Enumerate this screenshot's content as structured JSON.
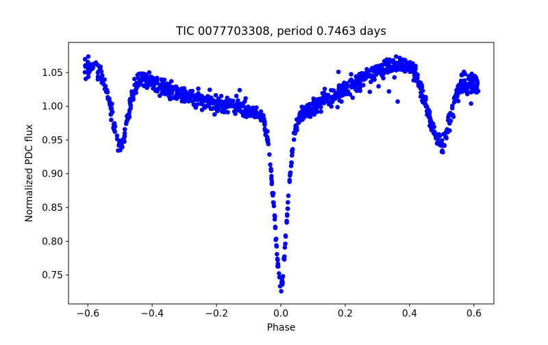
{
  "figure": {
    "background": "#ffffff",
    "axis_color": "#000000",
    "text_color": "#000000"
  },
  "chart_data": {
    "type": "scatter",
    "title": "TIC 0077703308, period 0.7463 days",
    "xlabel": "Phase",
    "ylabel": "Normalized PDC flux",
    "xlim": [
      -0.66,
      0.662
    ],
    "ylim": [
      0.7072,
      1.0946
    ],
    "grid": false,
    "legend": "none",
    "xticks": [
      -0.6,
      -0.4,
      -0.2,
      0.0,
      0.2,
      0.4,
      0.6
    ],
    "xtick_labels": [
      "−0.6",
      "−0.4",
      "−0.2",
      "0.0",
      "0.2",
      "0.4",
      "0.6"
    ],
    "yticks": [
      0.75,
      0.8,
      0.85,
      0.9,
      0.95,
      1.0,
      1.05
    ],
    "ytick_labels": [
      "0.75",
      "0.80",
      "0.85",
      "0.90",
      "0.95",
      "1.00",
      "1.05"
    ],
    "marker": {
      "color": "#0000ff",
      "radius_px": 3.3,
      "shape": "circle"
    },
    "phase_range": [
      -0.611,
      0.614
    ],
    "n_points": 1150,
    "seed": 9,
    "primary_eclipse": {
      "phase": 0.0,
      "min_flux": 0.731
    },
    "secondary_eclipse_left": {
      "phase": -0.5,
      "min_flux": 0.94
    },
    "secondary_eclipse_right": {
      "phase": 0.5,
      "min_flux": 0.944
    },
    "out_of_eclipse_max_flux": 1.063,
    "mean_curve": [
      [
        -0.615,
        1.057
      ],
      [
        -0.605,
        1.059
      ],
      [
        -0.595,
        1.06
      ],
      [
        -0.585,
        1.058
      ],
      [
        -0.575,
        1.054
      ],
      [
        -0.565,
        1.049
      ],
      [
        -0.555,
        1.04
      ],
      [
        -0.545,
        1.027
      ],
      [
        -0.535,
        1.008
      ],
      [
        -0.525,
        0.985
      ],
      [
        -0.515,
        0.962
      ],
      [
        -0.508,
        0.948
      ],
      [
        -0.5,
        0.94
      ],
      [
        -0.492,
        0.948
      ],
      [
        -0.485,
        0.962
      ],
      [
        -0.475,
        0.986
      ],
      [
        -0.465,
        1.01
      ],
      [
        -0.455,
        1.028
      ],
      [
        -0.445,
        1.038
      ],
      [
        -0.435,
        1.043
      ],
      [
        -0.425,
        1.042
      ],
      [
        -0.41,
        1.039
      ],
      [
        -0.39,
        1.034
      ],
      [
        -0.37,
        1.03
      ],
      [
        -0.35,
        1.026
      ],
      [
        -0.33,
        1.022
      ],
      [
        -0.31,
        1.018
      ],
      [
        -0.29,
        1.015
      ],
      [
        -0.27,
        1.012
      ],
      [
        -0.25,
        1.009
      ],
      [
        -0.23,
        1.007
      ],
      [
        -0.21,
        1.005
      ],
      [
        -0.19,
        1.002
      ],
      [
        -0.17,
        1.0
      ],
      [
        -0.15,
        0.998
      ],
      [
        -0.13,
        0.996
      ],
      [
        -0.11,
        0.994
      ],
      [
        -0.09,
        0.991
      ],
      [
        -0.075,
        0.989
      ],
      [
        -0.062,
        0.986
      ],
      [
        -0.054,
        0.98
      ],
      [
        -0.047,
        0.968
      ],
      [
        -0.04,
        0.948
      ],
      [
        -0.033,
        0.917
      ],
      [
        -0.026,
        0.877
      ],
      [
        -0.019,
        0.832
      ],
      [
        -0.013,
        0.79
      ],
      [
        -0.008,
        0.757
      ],
      [
        -0.004,
        0.739
      ],
      [
        0.0,
        0.731
      ],
      [
        0.004,
        0.74
      ],
      [
        0.008,
        0.758
      ],
      [
        0.013,
        0.792
      ],
      [
        0.019,
        0.835
      ],
      [
        0.026,
        0.882
      ],
      [
        0.033,
        0.922
      ],
      [
        0.04,
        0.952
      ],
      [
        0.047,
        0.97
      ],
      [
        0.054,
        0.981
      ],
      [
        0.063,
        0.987
      ],
      [
        0.075,
        0.992
      ],
      [
        0.09,
        0.997
      ],
      [
        0.11,
        1.003
      ],
      [
        0.13,
        1.008
      ],
      [
        0.15,
        1.013
      ],
      [
        0.17,
        1.018
      ],
      [
        0.19,
        1.023
      ],
      [
        0.21,
        1.028
      ],
      [
        0.23,
        1.033
      ],
      [
        0.25,
        1.038
      ],
      [
        0.27,
        1.043
      ],
      [
        0.29,
        1.048
      ],
      [
        0.31,
        1.053
      ],
      [
        0.33,
        1.057
      ],
      [
        0.35,
        1.06
      ],
      [
        0.37,
        1.062
      ],
      [
        0.385,
        1.062
      ],
      [
        0.4,
        1.058
      ],
      [
        0.412,
        1.052
      ],
      [
        0.424,
        1.042
      ],
      [
        0.435,
        1.028
      ],
      [
        0.447,
        1.01
      ],
      [
        0.458,
        0.99
      ],
      [
        0.47,
        0.972
      ],
      [
        0.48,
        0.958
      ],
      [
        0.49,
        0.948
      ],
      [
        0.5,
        0.944
      ],
      [
        0.508,
        0.95
      ],
      [
        0.516,
        0.962
      ],
      [
        0.526,
        0.98
      ],
      [
        0.536,
        0.999
      ],
      [
        0.546,
        1.015
      ],
      [
        0.556,
        1.026
      ],
      [
        0.566,
        1.032
      ],
      [
        0.578,
        1.035
      ],
      [
        0.592,
        1.035
      ],
      [
        0.606,
        1.033
      ],
      [
        0.615,
        1.031
      ]
    ],
    "noise_sigma_curve": [
      [
        -0.615,
        0.008
      ],
      [
        -0.55,
        0.0065
      ],
      [
        -0.5,
        0.006
      ],
      [
        -0.43,
        0.0065
      ],
      [
        -0.2,
        0.0065
      ],
      [
        -0.07,
        0.005
      ],
      [
        -0.035,
        0.0042
      ],
      [
        0.0,
        0.005
      ],
      [
        0.035,
        0.0042
      ],
      [
        0.07,
        0.005
      ],
      [
        0.2,
        0.0065
      ],
      [
        0.4,
        0.0065
      ],
      [
        0.5,
        0.007
      ],
      [
        0.55,
        0.0088
      ],
      [
        0.615,
        0.009
      ]
    ],
    "outliers": [
      [
        -0.128,
        1.024
      ],
      [
        0.179,
        1.051
      ],
      [
        0.336,
        1.022
      ],
      [
        0.363,
        1.007
      ],
      [
        0.591,
        1.004
      ]
    ]
  }
}
